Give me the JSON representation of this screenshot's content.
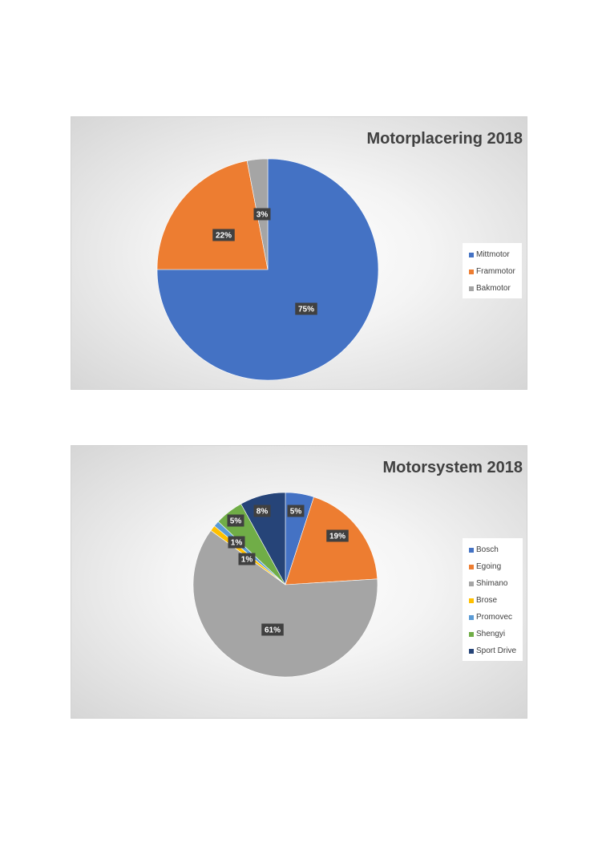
{
  "chart_data": [
    {
      "type": "pie",
      "title": "Motorplacering 2018",
      "categories": [
        "Mittmotor",
        "Frammotor",
        "Bakmotor"
      ],
      "values": [
        75,
        22,
        3
      ],
      "data_labels": [
        "75%",
        "22%",
        "3%"
      ],
      "colors": [
        "#4472c4",
        "#ed7d31",
        "#a5a5a5"
      ],
      "legend_position": "right"
    },
    {
      "type": "pie",
      "title": "Motorsystem 2018",
      "categories": [
        "Bosch",
        "Egoing",
        "Shimano",
        "Brose",
        "Promovec",
        "Shengyi",
        "Sport Drive"
      ],
      "values": [
        5,
        19,
        61,
        1,
        1,
        5,
        8
      ],
      "data_labels": [
        "5%",
        "19%",
        "61%",
        "1%",
        "1%",
        "5%",
        "8%"
      ],
      "colors": [
        "#4472c4",
        "#ed7d31",
        "#a5a5a5",
        "#ffc000",
        "#5b9bd5",
        "#70ad47",
        "#264478"
      ],
      "legend_position": "right"
    }
  ]
}
